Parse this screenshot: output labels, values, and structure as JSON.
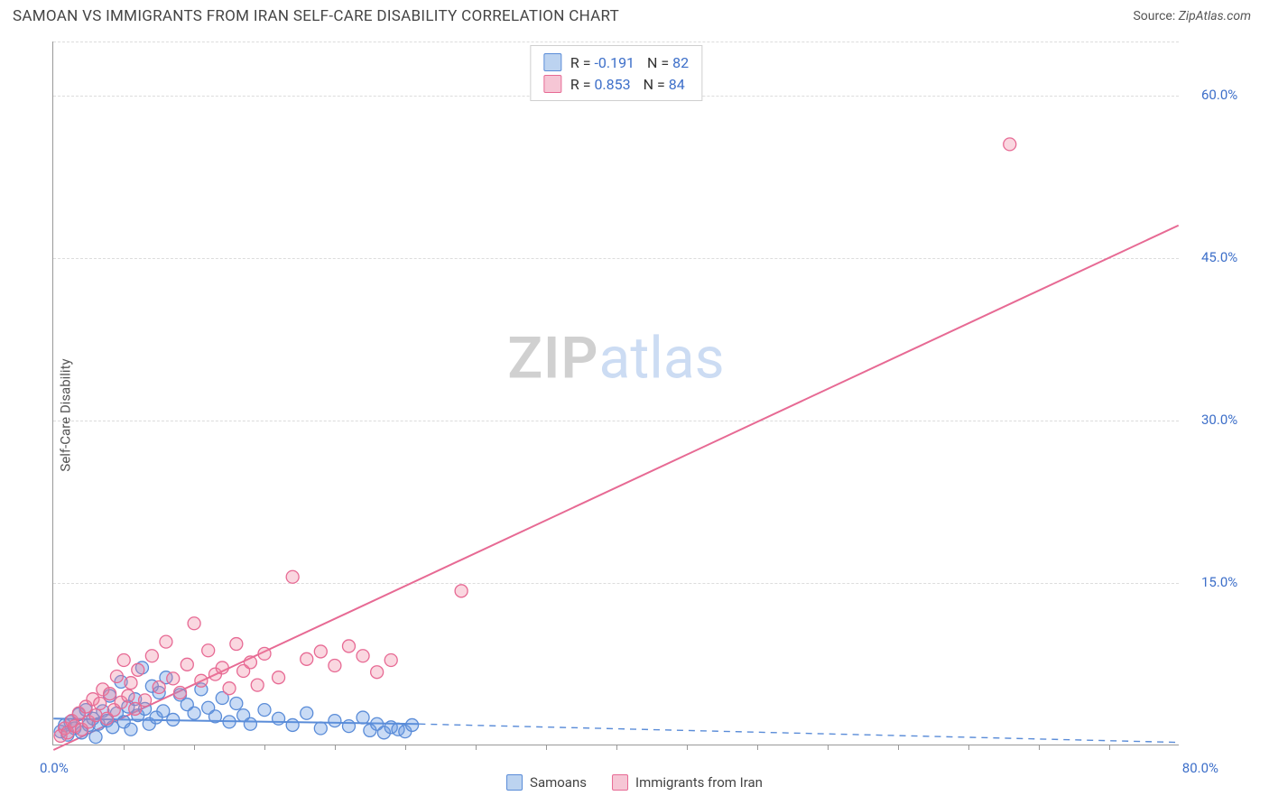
{
  "header": {
    "title": "SAMOAN VS IMMIGRANTS FROM IRAN SELF-CARE DISABILITY CORRELATION CHART",
    "source_label": "Source:",
    "source_value": "ZipAtlas.com"
  },
  "ylabel": "Self-Care Disability",
  "watermark": {
    "part1": "ZIP",
    "part2": "atlas"
  },
  "chart": {
    "type": "scatter",
    "xlim": [
      0,
      80
    ],
    "ylim": [
      0,
      65
    ],
    "x_label_min": "0.0%",
    "x_label_max": "80.0%",
    "ytick_values": [
      15,
      30,
      45,
      60
    ],
    "ytick_labels": [
      "15.0%",
      "30.0%",
      "45.0%",
      "60.0%"
    ],
    "xtick_minor_step": 5,
    "grid_color": "#dcdcdc",
    "axis_color": "#999999",
    "background_color": "#ffffff",
    "marker_radius": 7,
    "marker_stroke_width": 1.3,
    "line_width": 2,
    "series": [
      {
        "name": "Samoans",
        "color_fill": "rgba(99,151,225,0.35)",
        "color_stroke": "#5a8cd8",
        "swatch_fill": "#bcd3f0",
        "swatch_border": "#5a8cd8",
        "R": "-0.191",
        "N": "82",
        "regression": {
          "x1": 0,
          "y1": 2.4,
          "x2": 26,
          "y2": 1.9,
          "extend_x2": 80,
          "extend_y2": 0.2,
          "solid_until_x": 26
        },
        "points": [
          [
            0.5,
            1.2
          ],
          [
            0.8,
            1.8
          ],
          [
            1.0,
            0.9
          ],
          [
            1.2,
            2.1
          ],
          [
            1.5,
            1.5
          ],
          [
            1.8,
            2.8
          ],
          [
            2.0,
            1.1
          ],
          [
            2.3,
            3.2
          ],
          [
            2.5,
            1.8
          ],
          [
            2.8,
            2.4
          ],
          [
            3.0,
            0.7
          ],
          [
            3.2,
            1.9
          ],
          [
            3.5,
            3.1
          ],
          [
            3.8,
            2.2
          ],
          [
            4.0,
            4.5
          ],
          [
            4.2,
            1.6
          ],
          [
            4.5,
            2.9
          ],
          [
            4.8,
            5.8
          ],
          [
            5.0,
            2.1
          ],
          [
            5.3,
            3.5
          ],
          [
            5.5,
            1.4
          ],
          [
            5.8,
            4.2
          ],
          [
            6.0,
            2.7
          ],
          [
            6.3,
            7.1
          ],
          [
            6.5,
            3.3
          ],
          [
            6.8,
            1.9
          ],
          [
            7.0,
            5.4
          ],
          [
            7.3,
            2.5
          ],
          [
            7.5,
            4.8
          ],
          [
            7.8,
            3.1
          ],
          [
            8.0,
            6.2
          ],
          [
            8.5,
            2.3
          ],
          [
            9.0,
            4.6
          ],
          [
            9.5,
            3.7
          ],
          [
            10.0,
            2.9
          ],
          [
            10.5,
            5.1
          ],
          [
            11.0,
            3.4
          ],
          [
            11.5,
            2.6
          ],
          [
            12.0,
            4.3
          ],
          [
            12.5,
            2.1
          ],
          [
            13.0,
            3.8
          ],
          [
            13.5,
            2.7
          ],
          [
            14.0,
            1.9
          ],
          [
            15.0,
            3.2
          ],
          [
            16.0,
            2.4
          ],
          [
            17.0,
            1.8
          ],
          [
            18.0,
            2.9
          ],
          [
            19.0,
            1.5
          ],
          [
            20.0,
            2.2
          ],
          [
            21.0,
            1.7
          ],
          [
            22.0,
            2.5
          ],
          [
            22.5,
            1.3
          ],
          [
            23.0,
            1.9
          ],
          [
            23.5,
            1.1
          ],
          [
            24.0,
            1.6
          ],
          [
            24.5,
            1.4
          ],
          [
            25.0,
            1.2
          ],
          [
            25.5,
            1.8
          ]
        ]
      },
      {
        "name": "Immigrants from Iran",
        "color_fill": "rgba(238,130,160,0.32)",
        "color_stroke": "#e76a94",
        "swatch_fill": "#f6c6d5",
        "swatch_border": "#e76a94",
        "R": "0.853",
        "N": "84",
        "regression": {
          "x1": 0,
          "y1": -0.5,
          "x2": 80,
          "y2": 48,
          "solid_until_x": 80
        },
        "points": [
          [
            0.5,
            0.8
          ],
          [
            0.8,
            1.5
          ],
          [
            1.0,
            1.1
          ],
          [
            1.3,
            2.2
          ],
          [
            1.5,
            1.7
          ],
          [
            1.8,
            2.9
          ],
          [
            2.0,
            1.4
          ],
          [
            2.3,
            3.5
          ],
          [
            2.5,
            2.1
          ],
          [
            2.8,
            4.2
          ],
          [
            3.0,
            2.7
          ],
          [
            3.3,
            3.8
          ],
          [
            3.5,
            5.1
          ],
          [
            3.8,
            2.4
          ],
          [
            4.0,
            4.7
          ],
          [
            4.3,
            3.2
          ],
          [
            4.5,
            6.3
          ],
          [
            4.8,
            3.9
          ],
          [
            5.0,
            7.8
          ],
          [
            5.3,
            4.5
          ],
          [
            5.5,
            5.7
          ],
          [
            5.8,
            3.3
          ],
          [
            6.0,
            6.9
          ],
          [
            6.5,
            4.1
          ],
          [
            7.0,
            8.2
          ],
          [
            7.5,
            5.3
          ],
          [
            8.0,
            9.5
          ],
          [
            8.5,
            6.1
          ],
          [
            9.0,
            4.8
          ],
          [
            9.5,
            7.4
          ],
          [
            10.0,
            11.2
          ],
          [
            10.5,
            5.9
          ],
          [
            11.0,
            8.7
          ],
          [
            11.5,
            6.5
          ],
          [
            12.0,
            7.1
          ],
          [
            12.5,
            5.2
          ],
          [
            13.0,
            9.3
          ],
          [
            13.5,
            6.8
          ],
          [
            14.0,
            7.6
          ],
          [
            14.5,
            5.5
          ],
          [
            15.0,
            8.4
          ],
          [
            16.0,
            6.2
          ],
          [
            17.0,
            15.5
          ],
          [
            18.0,
            7.9
          ],
          [
            19.0,
            8.6
          ],
          [
            20.0,
            7.3
          ],
          [
            21.0,
            9.1
          ],
          [
            22.0,
            8.2
          ],
          [
            23.0,
            6.7
          ],
          [
            24.0,
            7.8
          ],
          [
            29.0,
            14.2
          ],
          [
            68.0,
            55.5
          ]
        ]
      }
    ]
  },
  "legend_bottom": [
    {
      "label": "Samoans",
      "fill": "#bcd3f0",
      "border": "#5a8cd8"
    },
    {
      "label": "Immigrants from Iran",
      "fill": "#f6c6d5",
      "border": "#e76a94"
    }
  ]
}
